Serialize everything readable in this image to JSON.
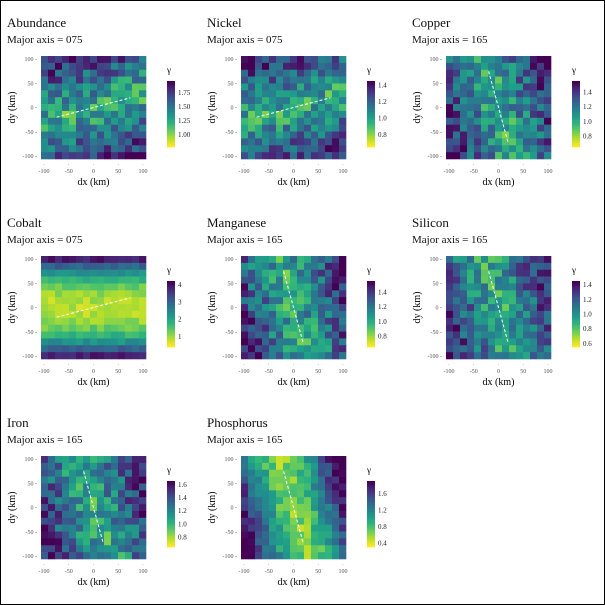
{
  "chart_data": [
    {
      "type": "heatmap",
      "title": "Abundance",
      "subtitle": "Major axis = 075",
      "axis_deg": 75,
      "xlabel": "dx (km)",
      "ylabel": "dy (km)",
      "xlim": [
        -110,
        110
      ],
      "ylim": [
        -110,
        110
      ],
      "xticks": [
        "-100",
        "-50",
        "0",
        "50",
        "100"
      ],
      "yticks": [
        "100",
        "50",
        "0",
        "-50",
        "-100"
      ],
      "legend_title": "γ",
      "colorbar": {
        "min": 0.78,
        "max": 1.95,
        "ticks": [
          1.0,
          1.25,
          1.5,
          1.75
        ],
        "tick_labels": [
          "1.00",
          "1.25",
          "1.50",
          "1.75"
        ]
      },
      "pattern": "center-low band along axis, high corners",
      "seed": 1
    },
    {
      "type": "heatmap",
      "title": "Nickel",
      "subtitle": "Major axis = 075",
      "axis_deg": 75,
      "xlabel": "dx (km)",
      "ylabel": "dy (km)",
      "xlim": [
        -110,
        110
      ],
      "ylim": [
        -110,
        110
      ],
      "xticks": [
        "-100",
        "-50",
        "0",
        "50",
        "100"
      ],
      "yticks": [
        "100",
        "50",
        "0",
        "-50",
        "-100"
      ],
      "legend_title": "γ",
      "colorbar": {
        "min": 0.65,
        "max": 1.45,
        "ticks": [
          0.8,
          1.0,
          1.2,
          1.4
        ],
        "tick_labels": [
          "0.8",
          "1.0",
          "1.2",
          "1.4"
        ]
      },
      "pattern": "noisy, low along axis",
      "seed": 2
    },
    {
      "type": "heatmap",
      "title": "Copper",
      "subtitle": "Major axis = 165",
      "axis_deg": 165,
      "xlabel": "dx (km)",
      "ylabel": "dy (km)",
      "xlim": [
        -110,
        110
      ],
      "ylim": [
        -110,
        110
      ],
      "xticks": [
        "-100",
        "-50",
        "0",
        "50",
        "100"
      ],
      "yticks": [
        "100",
        "50",
        "0",
        "-50",
        "-100"
      ],
      "legend_title": "γ",
      "colorbar": {
        "min": 0.65,
        "max": 1.55,
        "ticks": [
          0.8,
          1.0,
          1.2,
          1.4
        ],
        "tick_labels": [
          "0.8",
          "1.0",
          "1.2",
          "1.4"
        ]
      },
      "pattern": "low center, high bottom-left",
      "seed": 3
    },
    {
      "type": "heatmap",
      "title": "Cobalt",
      "subtitle": "Major axis = 075",
      "axis_deg": 75,
      "xlabel": "dx (km)",
      "ylabel": "dy (km)",
      "xlim": [
        -110,
        110
      ],
      "ylim": [
        -110,
        110
      ],
      "xticks": [
        "-100",
        "-50",
        "0",
        "50",
        "100"
      ],
      "yticks": [
        "100",
        "50",
        "0",
        "-50",
        "-100"
      ],
      "legend_title": "γ",
      "colorbar": {
        "min": 0.4,
        "max": 4.2,
        "ticks": [
          1,
          2,
          3,
          4
        ],
        "tick_labels": [
          "1",
          "2",
          "3",
          "4"
        ]
      },
      "pattern": "smooth low horizontal band, high top/bottom",
      "seed": 4
    },
    {
      "type": "heatmap",
      "title": "Manganese",
      "subtitle": "Major axis = 165",
      "axis_deg": 165,
      "xlabel": "dx (km)",
      "ylabel": "dy (km)",
      "xlim": [
        -110,
        110
      ],
      "ylim": [
        -110,
        110
      ],
      "xticks": [
        "-100",
        "-50",
        "0",
        "50",
        "100"
      ],
      "yticks": [
        "100",
        "50",
        "0",
        "-50",
        "-100"
      ],
      "legend_title": "γ",
      "colorbar": {
        "min": 0.65,
        "max": 1.55,
        "ticks": [
          0.8,
          1.0,
          1.2,
          1.4
        ],
        "tick_labels": [
          "0.8",
          "1.0",
          "1.2",
          "1.4"
        ]
      },
      "pattern": "noisy",
      "seed": 5
    },
    {
      "type": "heatmap",
      "title": "Silicon",
      "subtitle": "Major axis = 165",
      "axis_deg": 165,
      "xlabel": "dx (km)",
      "ylabel": "dy (km)",
      "xlim": [
        -110,
        110
      ],
      "ylim": [
        -110,
        110
      ],
      "xticks": [
        "-100",
        "-50",
        "0",
        "50",
        "100"
      ],
      "yticks": [
        "100",
        "50",
        "0",
        "-50",
        "-100"
      ],
      "legend_title": "γ",
      "colorbar": {
        "min": 0.55,
        "max": 1.45,
        "ticks": [
          0.6,
          0.8,
          1.0,
          1.2,
          1.4
        ],
        "tick_labels": [
          "0.6",
          "0.8",
          "1.0",
          "1.2",
          "1.4"
        ]
      },
      "pattern": "noisy, low corners",
      "seed": 6
    },
    {
      "type": "heatmap",
      "title": "Iron",
      "subtitle": "Major axis = 165",
      "axis_deg": 165,
      "xlabel": "dx (km)",
      "ylabel": "dy (km)",
      "xlim": [
        -110,
        110
      ],
      "ylim": [
        -110,
        110
      ],
      "xticks": [
        "-100",
        "-50",
        "0",
        "50",
        "100"
      ],
      "yticks": [
        "100",
        "50",
        "0",
        "-50",
        "-100"
      ],
      "legend_title": "γ",
      "colorbar": {
        "min": 0.65,
        "max": 1.65,
        "ticks": [
          0.8,
          1.0,
          1.2,
          1.4,
          1.6
        ],
        "tick_labels": [
          "0.8",
          "1.0",
          "1.2",
          "1.4",
          "1.6"
        ]
      },
      "pattern": "low center band, higher top/bottom",
      "seed": 7
    },
    {
      "type": "heatmap",
      "title": "Phosphorus",
      "subtitle": "Major axis = 165",
      "axis_deg": 165,
      "xlabel": "dx (km)",
      "ylabel": "dy (km)",
      "xlim": [
        -110,
        110
      ],
      "ylim": [
        -110,
        110
      ],
      "xticks": [
        "-100",
        "-50",
        "0",
        "50",
        "100"
      ],
      "yticks": [
        "100",
        "50",
        "0",
        "-50",
        "-100"
      ],
      "legend_title": "γ",
      "colorbar": {
        "min": 0.3,
        "max": 1.9,
        "ticks": [
          0.4,
          0.8,
          1.2,
          1.6
        ],
        "tick_labels": [
          "0.4",
          "0.8",
          "1.2",
          "1.6"
        ]
      },
      "pattern": "low vertical band along axis, high left/right edges",
      "seed": 8
    }
  ],
  "grid_cells": 15
}
